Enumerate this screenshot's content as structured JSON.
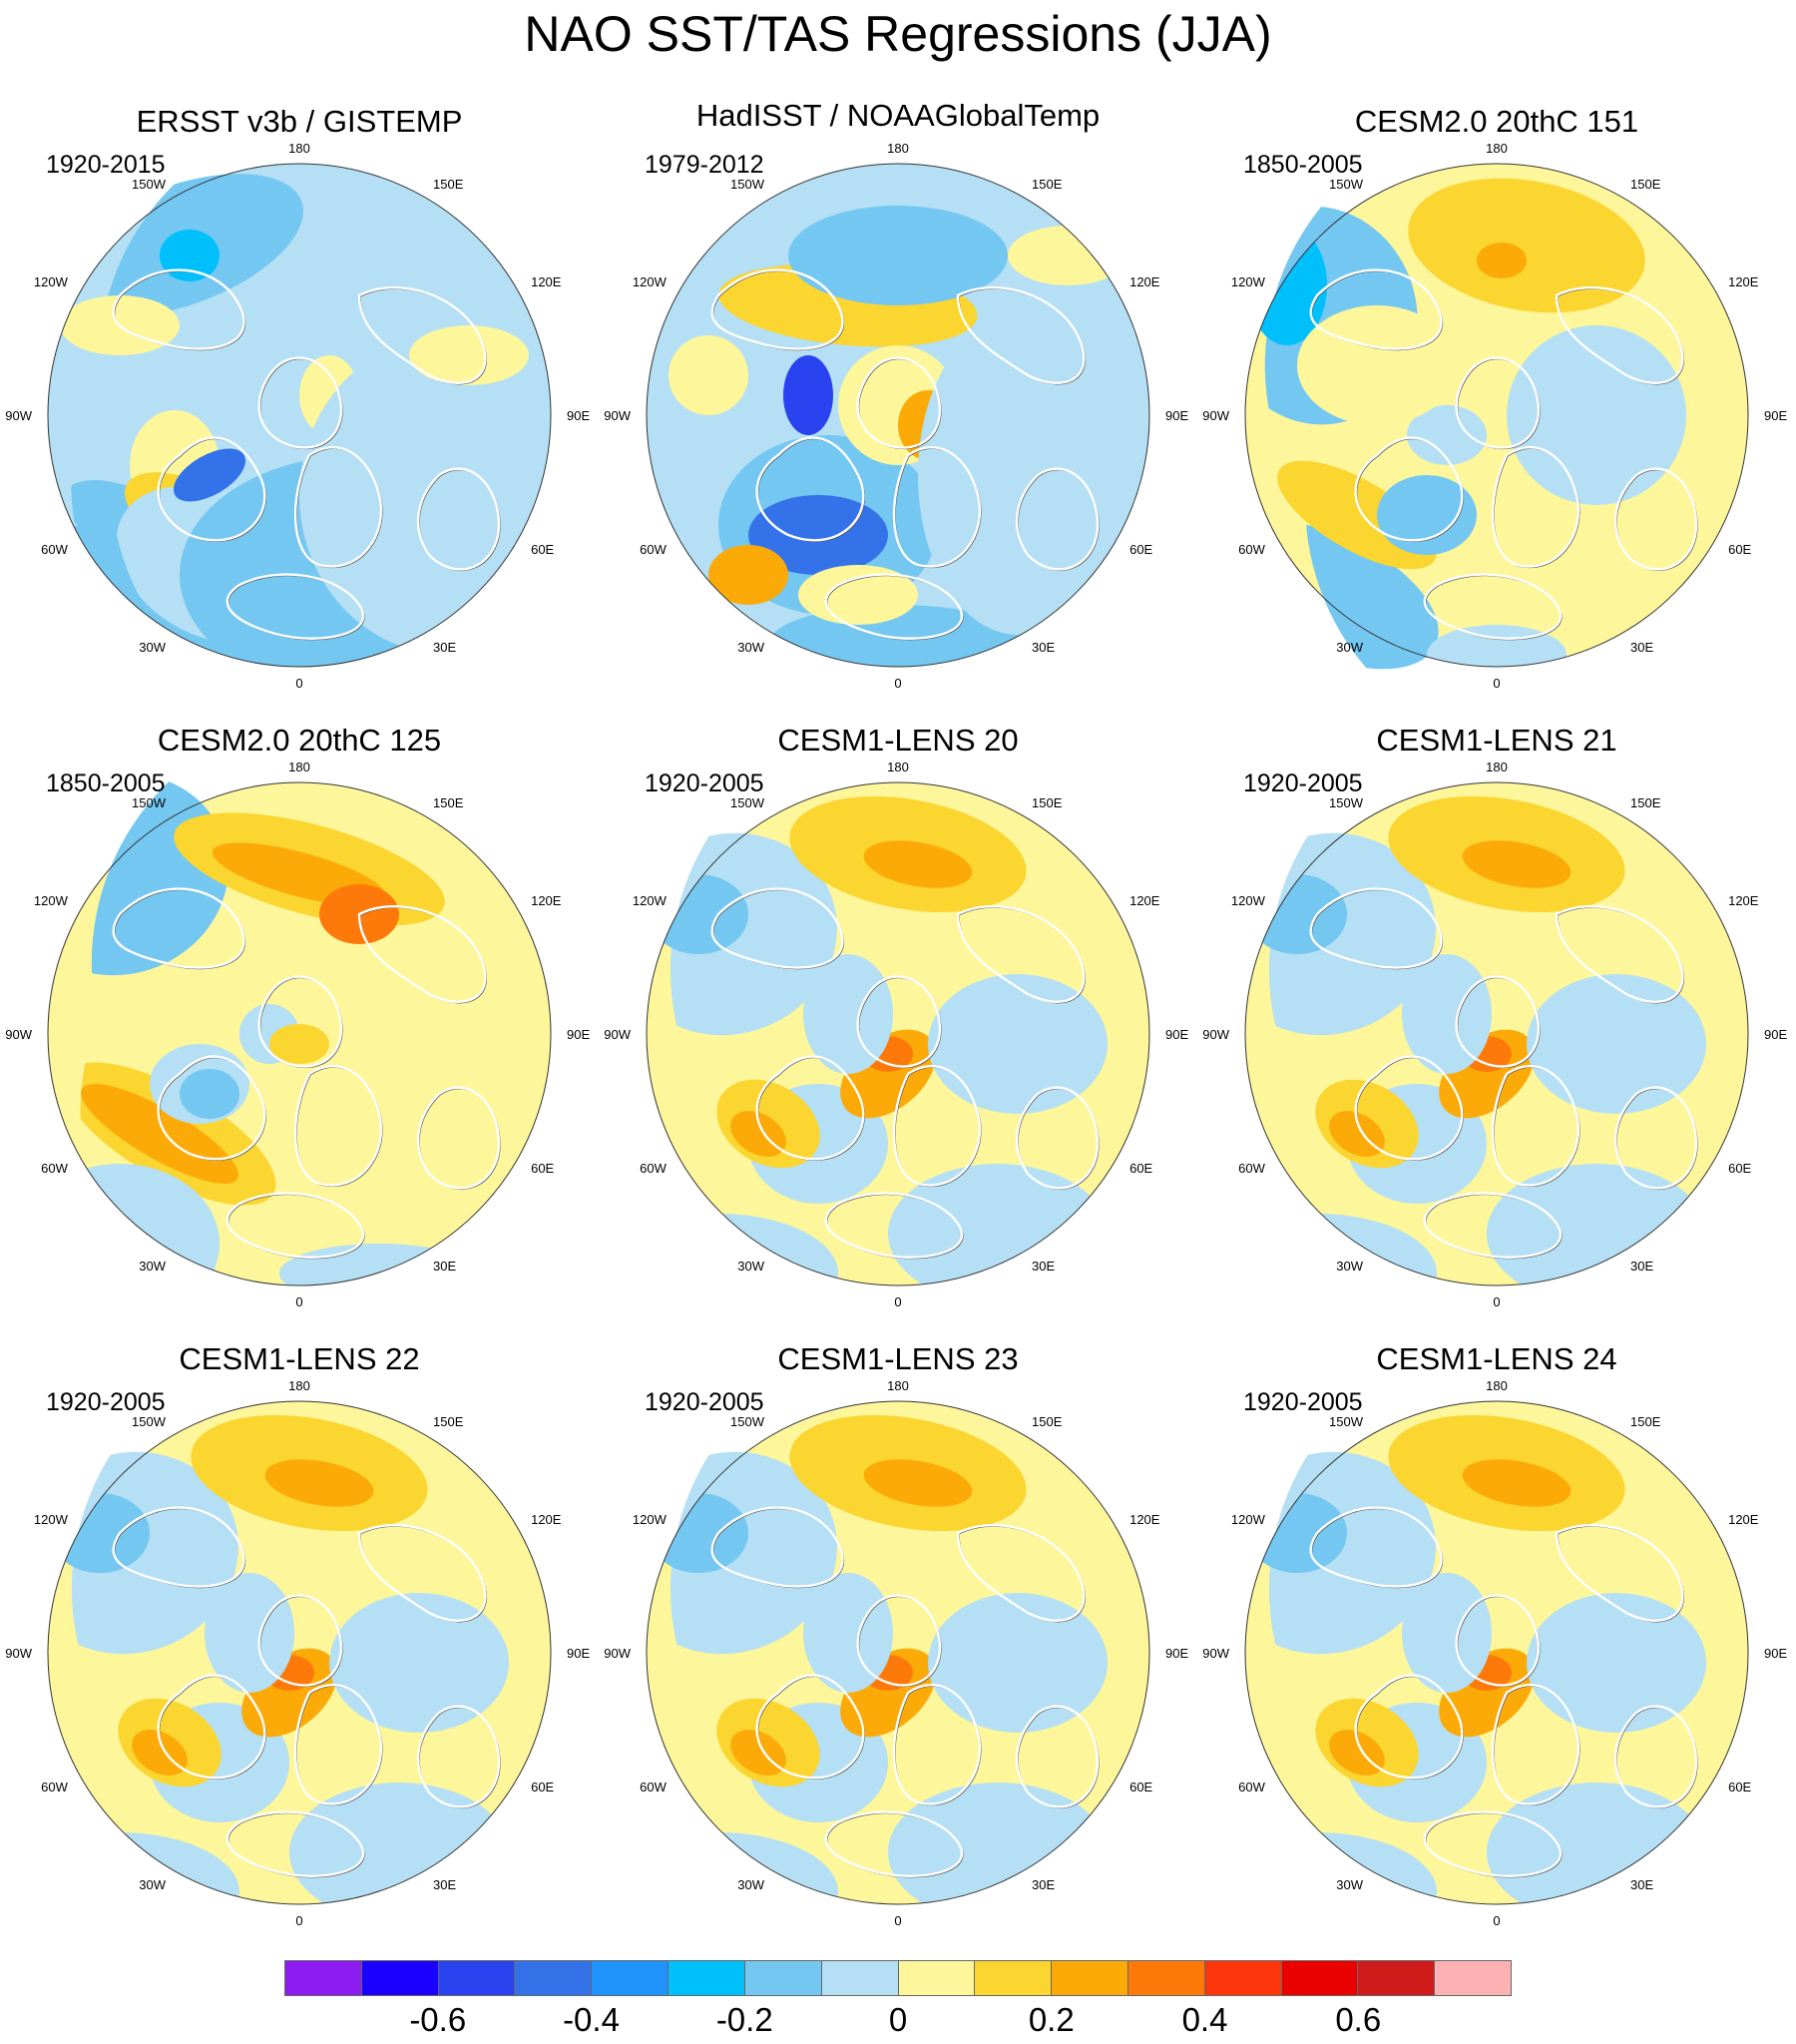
{
  "title": "NAO SST/TAS Regressions (JJA)",
  "longitude_labels": [
    "180",
    "150E",
    "120E",
    "90E",
    "60E",
    "30E",
    "0",
    "30W",
    "60W",
    "90W",
    "120W",
    "150W"
  ],
  "panels": [
    {
      "id": "p1",
      "title": "ERSST v3b / GISTEMP",
      "period": "1920-2015",
      "style": "obs1"
    },
    {
      "id": "p2",
      "title": "HadISST / NOAAGlobalTemp",
      "period": "1979-2012",
      "style": "obs2"
    },
    {
      "id": "p3",
      "title": "CESM2.0 20thC 151",
      "period": "1850-2005",
      "style": "cesm2a"
    },
    {
      "id": "p4",
      "title": "CESM2.0 20thC 125",
      "period": "1850-2005",
      "style": "cesm2b"
    },
    {
      "id": "p5",
      "title": "CESM1-LENS 20",
      "period": "1920-2005",
      "style": "lens"
    },
    {
      "id": "p6",
      "title": "CESM1-LENS 21",
      "period": "1920-2005",
      "style": "lens"
    },
    {
      "id": "p7",
      "title": "CESM1-LENS 22",
      "period": "1920-2005",
      "style": "lens"
    },
    {
      "id": "p8",
      "title": "CESM1-LENS 23",
      "period": "1920-2005",
      "style": "lens"
    },
    {
      "id": "p9",
      "title": "CESM1-LENS 24",
      "period": "1920-2005",
      "style": "lens"
    }
  ],
  "colorbar": {
    "colors": [
      "#8c1cf2",
      "#1a00ff",
      "#2a43f0",
      "#3472ea",
      "#1f93fb",
      "#00c0fb",
      "#74c7f1",
      "#b4dff4",
      "#fdf69b",
      "#fbd530",
      "#fbaa08",
      "#fd7a0a",
      "#fd370b",
      "#e90100",
      "#d01b1b",
      "#fcb2b2"
    ],
    "labels": [
      "-0.6",
      "-0.4",
      "-0.2",
      "0",
      "0.2",
      "0.4",
      "0.6"
    ],
    "label_boundaries": [
      2,
      4,
      6,
      8,
      10,
      12,
      14
    ]
  },
  "colors": {
    "coast": "#ffffff",
    "coast_shadow": "#555555",
    "light_blue": "#b4dff4",
    "mid_blue": "#74c7f1",
    "cyan": "#00c0fb",
    "blue": "#3472ea",
    "dark_blue": "#2a43f0",
    "light_yellow": "#fdf69b",
    "yellow": "#fbd530",
    "orange": "#fbaa08",
    "dark_orange": "#fd7a0a",
    "red": "#e90100"
  }
}
